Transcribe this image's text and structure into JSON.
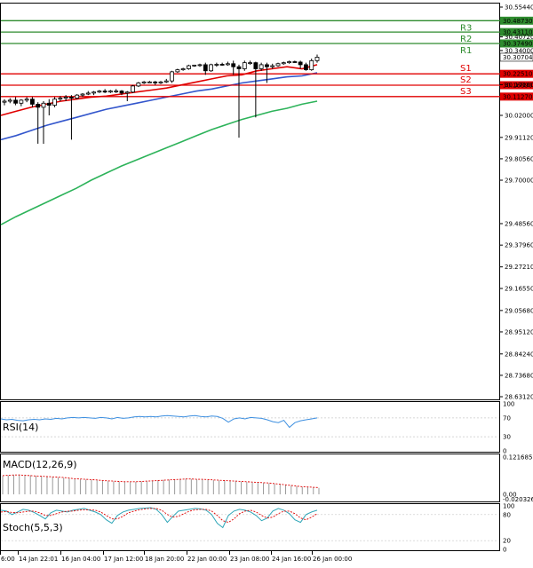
{
  "chart_data": {
    "type": "candlestick",
    "main": {
      "price_ticks": [
        "30.55440",
        "30.40720",
        "30.34000",
        "30.17160",
        "30.02000",
        "29.91120",
        "29.80560",
        "29.70000",
        "29.48560",
        "29.37960",
        "29.27210",
        "29.16550",
        "29.05680",
        "28.95120",
        "28.84240",
        "28.73680",
        "28.63120"
      ],
      "y_range": [
        28.6312,
        30.5544
      ],
      "x_ticks": [
        "6:00",
        "14 Jan 22:01",
        "16 Jan 04:00",
        "17 Jan 12:00",
        "18 Jan 20:00",
        "22 Jan 00:00",
        "23 Jan 08:00",
        "24 Jan 16:00",
        "26 Jan 00:00"
      ],
      "current_price": "30.30704",
      "levels": [
        {
          "name": "R3",
          "value": "30.48730",
          "price": 30.4873,
          "color": "#2e8b2e"
        },
        {
          "name": "R2",
          "value": "30.43110",
          "price": 30.4311,
          "color": "#2e8b2e"
        },
        {
          "name": "R1",
          "value": "30.37490",
          "price": 30.3749,
          "color": "#2e8b2e"
        },
        {
          "name": "S1",
          "value": "30.22510",
          "price": 30.2251,
          "color": "#e00000"
        },
        {
          "name": "S2",
          "value": "30.16890",
          "price": 30.1689,
          "color": "#e00000"
        },
        {
          "name": "S3",
          "value": "30.11270",
          "price": 30.1127,
          "color": "#e00000"
        }
      ],
      "candles": [
        {
          "o": 30.085,
          "h": 30.1,
          "l": 30.07,
          "c": 30.09
        },
        {
          "o": 30.09,
          "h": 30.105,
          "l": 30.08,
          "c": 30.095
        },
        {
          "o": 30.095,
          "h": 30.11,
          "l": 30.07,
          "c": 30.08
        },
        {
          "o": 30.08,
          "h": 30.1,
          "l": 30.065,
          "c": 30.095
        },
        {
          "o": 30.095,
          "h": 30.11,
          "l": 30.085,
          "c": 30.1
        },
        {
          "o": 30.1,
          "h": 30.11,
          "l": 30.06,
          "c": 30.075
        },
        {
          "o": 30.075,
          "h": 30.085,
          "l": 29.88,
          "c": 30.06
        },
        {
          "o": 30.06,
          "h": 30.09,
          "l": 29.88,
          "c": 30.08
        },
        {
          "o": 30.08,
          "h": 30.1,
          "l": 30.02,
          "c": 30.07
        },
        {
          "o": 30.07,
          "h": 30.11,
          "l": 30.06,
          "c": 30.1
        },
        {
          "o": 30.1,
          "h": 30.115,
          "l": 30.09,
          "c": 30.105
        },
        {
          "o": 30.105,
          "h": 30.12,
          "l": 30.09,
          "c": 30.11
        },
        {
          "o": 30.11,
          "h": 30.12,
          "l": 29.9,
          "c": 30.105
        },
        {
          "o": 30.105,
          "h": 30.125,
          "l": 30.1,
          "c": 30.12
        },
        {
          "o": 30.12,
          "h": 30.13,
          "l": 30.11,
          "c": 30.125
        },
        {
          "o": 30.125,
          "h": 30.14,
          "l": 30.12,
          "c": 30.13
        },
        {
          "o": 30.13,
          "h": 30.14,
          "l": 30.12,
          "c": 30.135
        },
        {
          "o": 30.135,
          "h": 30.145,
          "l": 30.13,
          "c": 30.14
        },
        {
          "o": 30.14,
          "h": 30.15,
          "l": 30.13,
          "c": 30.135
        },
        {
          "o": 30.135,
          "h": 30.145,
          "l": 30.13,
          "c": 30.14
        },
        {
          "o": 30.14,
          "h": 30.15,
          "l": 30.13,
          "c": 30.14
        },
        {
          "o": 30.14,
          "h": 30.145,
          "l": 30.12,
          "c": 30.13
        },
        {
          "o": 30.13,
          "h": 30.14,
          "l": 30.09,
          "c": 30.135
        },
        {
          "o": 30.135,
          "h": 30.17,
          "l": 30.13,
          "c": 30.165
        },
        {
          "o": 30.165,
          "h": 30.185,
          "l": 30.16,
          "c": 30.18
        },
        {
          "o": 30.18,
          "h": 30.19,
          "l": 30.175,
          "c": 30.185
        },
        {
          "o": 30.185,
          "h": 30.19,
          "l": 30.18,
          "c": 30.185
        },
        {
          "o": 30.185,
          "h": 30.19,
          "l": 30.17,
          "c": 30.18
        },
        {
          "o": 30.18,
          "h": 30.19,
          "l": 30.175,
          "c": 30.185
        },
        {
          "o": 30.185,
          "h": 30.2,
          "l": 30.18,
          "c": 30.19
        },
        {
          "o": 30.19,
          "h": 30.24,
          "l": 30.18,
          "c": 30.235
        },
        {
          "o": 30.235,
          "h": 30.25,
          "l": 30.23,
          "c": 30.245
        },
        {
          "o": 30.245,
          "h": 30.255,
          "l": 30.24,
          "c": 30.25
        },
        {
          "o": 30.25,
          "h": 30.27,
          "l": 30.245,
          "c": 30.265
        },
        {
          "o": 30.265,
          "h": 30.27,
          "l": 30.26,
          "c": 30.268
        },
        {
          "o": 30.268,
          "h": 30.275,
          "l": 30.26,
          "c": 30.27
        },
        {
          "o": 30.27,
          "h": 30.28,
          "l": 30.22,
          "c": 30.24
        },
        {
          "o": 30.24,
          "h": 30.275,
          "l": 30.235,
          "c": 30.27
        },
        {
          "o": 30.27,
          "h": 30.28,
          "l": 30.26,
          "c": 30.272
        },
        {
          "o": 30.272,
          "h": 30.28,
          "l": 30.265,
          "c": 30.27
        },
        {
          "o": 30.27,
          "h": 30.285,
          "l": 30.265,
          "c": 30.275
        },
        {
          "o": 30.275,
          "h": 30.29,
          "l": 30.22,
          "c": 30.26
        },
        {
          "o": 30.26,
          "h": 30.27,
          "l": 29.91,
          "c": 30.25
        },
        {
          "o": 30.25,
          "h": 30.29,
          "l": 30.24,
          "c": 30.28
        },
        {
          "o": 30.28,
          "h": 30.29,
          "l": 30.27,
          "c": 30.28
        },
        {
          "o": 30.28,
          "h": 30.285,
          "l": 30.01,
          "c": 30.25
        },
        {
          "o": 30.25,
          "h": 30.28,
          "l": 30.24,
          "c": 30.27
        },
        {
          "o": 30.27,
          "h": 30.28,
          "l": 30.18,
          "c": 30.26
        },
        {
          "o": 30.26,
          "h": 30.275,
          "l": 30.25,
          "c": 30.265
        },
        {
          "o": 30.265,
          "h": 30.28,
          "l": 30.26,
          "c": 30.275
        },
        {
          "o": 30.275,
          "h": 30.285,
          "l": 30.27,
          "c": 30.28
        },
        {
          "o": 30.28,
          "h": 30.29,
          "l": 30.275,
          "c": 30.285
        },
        {
          "o": 30.285,
          "h": 30.29,
          "l": 30.28,
          "c": 30.283
        },
        {
          "o": 30.283,
          "h": 30.29,
          "l": 30.25,
          "c": 30.27
        },
        {
          "o": 30.27,
          "h": 30.28,
          "l": 30.24,
          "c": 30.245
        },
        {
          "o": 30.245,
          "h": 30.3,
          "l": 30.24,
          "c": 30.29
        },
        {
          "o": 30.29,
          "h": 30.32,
          "l": 30.28,
          "c": 30.30704
        }
      ],
      "ma_red": [
        30.02,
        30.04,
        30.06,
        30.075,
        30.09,
        30.1,
        30.11,
        30.115,
        30.125,
        30.135,
        30.145,
        30.155,
        30.17,
        30.185,
        30.2,
        30.215,
        30.22,
        30.24,
        30.25,
        30.26,
        30.25,
        30.27
      ],
      "ma_blue": [
        29.9,
        29.92,
        29.945,
        29.97,
        29.99,
        30.01,
        30.03,
        30.05,
        30.065,
        30.08,
        30.095,
        30.11,
        30.125,
        30.14,
        30.15,
        30.165,
        30.18,
        30.19,
        30.2,
        30.21,
        30.215,
        30.23
      ],
      "ma_green": [
        29.48,
        29.52,
        29.555,
        29.59,
        29.625,
        29.66,
        29.7,
        29.735,
        29.77,
        29.8,
        29.83,
        29.86,
        29.89,
        29.92,
        29.95,
        29.975,
        30.0,
        30.02,
        30.04,
        30.055,
        30.075,
        30.09
      ]
    },
    "rsi": {
      "label": "RSI(14)",
      "ticks": [
        "100",
        "70",
        "30",
        "0"
      ],
      "values": [
        68,
        66,
        67,
        65,
        64,
        66,
        67,
        66,
        68,
        67,
        69,
        68,
        70,
        71,
        70,
        71,
        70,
        69,
        71,
        70,
        68,
        71,
        69,
        70,
        72,
        73,
        72,
        73,
        72,
        74,
        75,
        74,
        73,
        72,
        74,
        75,
        73,
        72,
        74,
        73,
        69,
        61,
        68,
        70,
        68,
        71,
        70,
        69,
        66,
        62,
        60,
        65,
        50,
        60,
        64,
        66,
        68,
        70
      ]
    },
    "macd": {
      "label": "MACD(12,26,9)",
      "ticks": [
        "0.121685",
        "0.00",
        "-0.020326"
      ],
      "histogram": [
        0.06,
        0.062,
        0.064,
        0.065,
        0.064,
        0.062,
        0.06,
        0.058,
        0.057,
        0.056,
        0.055,
        0.054,
        0.052,
        0.05,
        0.049,
        0.048,
        0.047,
        0.046,
        0.044,
        0.043,
        0.042,
        0.041,
        0.04,
        0.04,
        0.041,
        0.042,
        0.043,
        0.045,
        0.046,
        0.047,
        0.048,
        0.049,
        0.05,
        0.051,
        0.05,
        0.049,
        0.048,
        0.047,
        0.046,
        0.045,
        0.044,
        0.043,
        0.042,
        0.041,
        0.04,
        0.039,
        0.038,
        0.037,
        0.036,
        0.034,
        0.032,
        0.03,
        0.028,
        0.026,
        0.024,
        0.023,
        0.022,
        0.021
      ],
      "signal": [
        0.061,
        0.062,
        0.063,
        0.063,
        0.062,
        0.061,
        0.06,
        0.059,
        0.058,
        0.057,
        0.056,
        0.055,
        0.053,
        0.051,
        0.05,
        0.049,
        0.048,
        0.047,
        0.045,
        0.044,
        0.043,
        0.042,
        0.041,
        0.041,
        0.041,
        0.042,
        0.043,
        0.044,
        0.045,
        0.046,
        0.047,
        0.048,
        0.049,
        0.05,
        0.05,
        0.049,
        0.049,
        0.048,
        0.047,
        0.046,
        0.045,
        0.044,
        0.043,
        0.042,
        0.041,
        0.04,
        0.039,
        0.038,
        0.037,
        0.035,
        0.033,
        0.031,
        0.029,
        0.027,
        0.025,
        0.024,
        0.023,
        0.022
      ]
    },
    "stoch": {
      "label": "Stoch(5,5,3)",
      "ticks": [
        "100",
        "80",
        "20",
        "0"
      ],
      "k": [
        90,
        88,
        80,
        86,
        92,
        90,
        85,
        78,
        70,
        84,
        90,
        88,
        86,
        90,
        92,
        94,
        90,
        86,
        80,
        68,
        60,
        78,
        86,
        90,
        92,
        94,
        95,
        96,
        92,
        80,
        62,
        76,
        88,
        90,
        92,
        94,
        93,
        90,
        80,
        60,
        50,
        78,
        88,
        92,
        90,
        86,
        78,
        66,
        72,
        88,
        94,
        90,
        82,
        68,
        62,
        80,
        86,
        90
      ],
      "d": [
        86,
        87,
        85,
        84,
        86,
        88,
        88,
        84,
        78,
        78,
        82,
        86,
        88,
        88,
        90,
        91,
        91,
        90,
        86,
        78,
        70,
        70,
        76,
        84,
        88,
        91,
        93,
        94,
        94,
        90,
        80,
        74,
        76,
        82,
        88,
        91,
        92,
        92,
        88,
        78,
        66,
        62,
        70,
        82,
        88,
        90,
        86,
        78,
        72,
        74,
        82,
        88,
        88,
        82,
        72,
        68,
        74,
        82
      ]
    }
  }
}
